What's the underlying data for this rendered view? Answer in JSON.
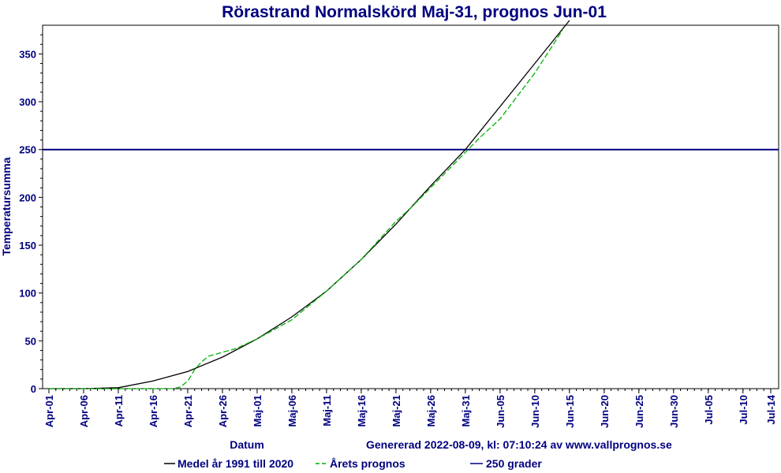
{
  "chart_data": {
    "type": "line",
    "title": "Rörastrand Normalskörd Maj-31, prognos Jun-01",
    "xlabel": "Datum",
    "ylabel": "Temperatursumma",
    "footer": "Genererad 2022-08-09, kl: 07:10:24 av www.vallprognos.se",
    "ylim": [
      0,
      380
    ],
    "yticks": [
      0,
      50,
      100,
      150,
      200,
      250,
      300,
      350
    ],
    "xlim": [
      "04-01",
      "07-14"
    ],
    "xticks": [
      "Apr-01",
      "Apr-06",
      "Apr-11",
      "Apr-16",
      "Apr-21",
      "Apr-26",
      "Maj-01",
      "Maj-06",
      "Maj-11",
      "Maj-16",
      "Maj-21",
      "Maj-26",
      "Maj-31",
      "Jun-05",
      "Jun-10",
      "Jun-15",
      "Jun-20",
      "Jun-25",
      "Jun-30",
      "Jul-05",
      "Jul-10",
      "Jul-14"
    ],
    "grid": false,
    "legend_position": "bottom",
    "series": [
      {
        "name": "Medel år 1991 till 2020",
        "color": "#000000",
        "style": "solid",
        "x": [
          "04-01",
          "04-06",
          "04-11",
          "04-16",
          "04-21",
          "04-26",
          "05-01",
          "05-06",
          "05-11",
          "05-16",
          "05-21",
          "05-26",
          "05-31",
          "06-05",
          "06-10",
          "06-15"
        ],
        "y": [
          0,
          0,
          1,
          8,
          18,
          33,
          52,
          75,
          102,
          135,
          172,
          212,
          250,
          295,
          340,
          385
        ]
      },
      {
        "name": "Årets prognos",
        "color": "#00b000",
        "style": "dashed",
        "x": [
          "04-01",
          "04-06",
          "04-11",
          "04-16",
          "04-19",
          "04-20",
          "04-21",
          "04-22",
          "04-23",
          "04-24",
          "04-26",
          "04-28",
          "05-01",
          "05-06",
          "05-11",
          "05-16",
          "05-21",
          "05-23",
          "05-26",
          "05-31",
          "06-02",
          "06-05",
          "06-10",
          "06-14"
        ],
        "y": [
          0,
          0,
          0,
          0,
          0,
          2,
          8,
          20,
          28,
          34,
          38,
          42,
          52,
          72,
          102,
          135,
          175,
          188,
          210,
          247,
          262,
          282,
          330,
          375
        ]
      },
      {
        "name": "250 grader",
        "color": "#000080",
        "style": "solid",
        "x": [
          "04-01",
          "07-14"
        ],
        "y": [
          250,
          250
        ]
      }
    ]
  }
}
